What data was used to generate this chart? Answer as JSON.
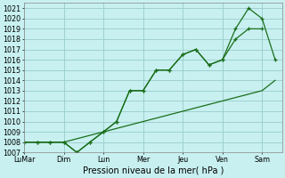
{
  "xlabel": "Pression niveau de la mer( hPa )",
  "background_color": "#c8f0f0",
  "grid_color": "#99cccc",
  "line_color": "#1a6e1a",
  "xlim": [
    0,
    6.5
  ],
  "ylim": [
    1007,
    1021.5
  ],
  "yticks": [
    1007,
    1008,
    1009,
    1010,
    1011,
    1012,
    1013,
    1014,
    1015,
    1016,
    1017,
    1018,
    1019,
    1020,
    1021
  ],
  "xtick_pos": [
    0,
    1,
    2,
    3,
    4,
    5,
    6
  ],
  "xtick_labels": [
    "LuMar",
    "Dim",
    "Lun",
    "Mer",
    "Jeu",
    "Ven",
    "Sam"
  ],
  "series1_x": [
    0.0,
    0.33,
    0.66,
    1.0,
    1.33,
    1.66,
    2.0,
    2.33,
    2.66,
    3.0,
    3.33,
    3.66,
    4.0,
    4.33,
    4.66,
    5.0,
    5.33,
    5.66,
    6.0
  ],
  "series1_y": [
    1008,
    1008,
    1008,
    1008,
    1007,
    1008,
    1009,
    1010,
    1013,
    1013,
    1015,
    1015,
    1016.5,
    1017,
    1015.5,
    1016,
    1018,
    1019,
    1019
  ],
  "series2_x": [
    0.0,
    0.33,
    0.66,
    1.0,
    1.33,
    1.66,
    2.0,
    2.33,
    2.66,
    3.0,
    3.33,
    3.66,
    4.0,
    4.33,
    4.66,
    5.0,
    5.33,
    5.66,
    6.0,
    6.33
  ],
  "series2_y": [
    1008,
    1008,
    1008,
    1008,
    1007,
    1008,
    1009,
    1010,
    1013,
    1013,
    1015,
    1015,
    1016.5,
    1017,
    1015.5,
    1016,
    1019,
    1021,
    1020,
    1016
  ],
  "series3_x": [
    0.0,
    1.0,
    2.0,
    3.0,
    4.0,
    5.0,
    6.0,
    6.33
  ],
  "series3_y": [
    1008,
    1008,
    1009,
    1010,
    1011,
    1012,
    1013,
    1014
  ],
  "marker": "+",
  "xlabel_fontsize": 7.0,
  "tick_fontsize": 5.8
}
